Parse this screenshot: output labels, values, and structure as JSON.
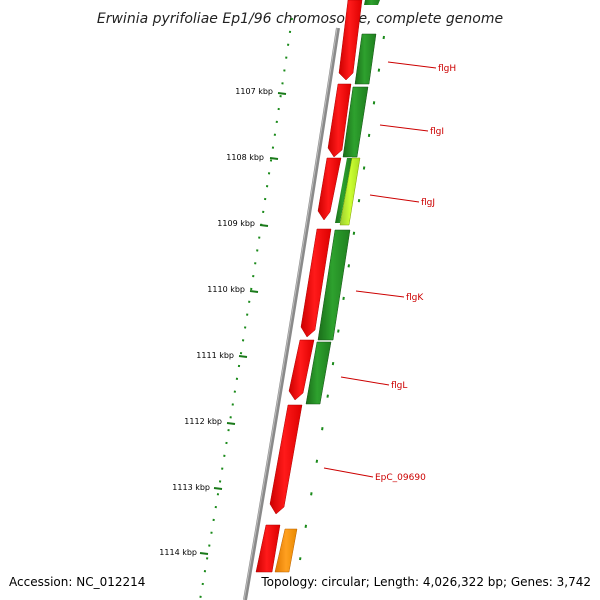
{
  "title": "Erwinia pyrifoliae Ep1/96 chromosome, complete genome",
  "footer": {
    "accession": "Accession: NC_012214",
    "topology": "Topology: circular; Length: 4,026,322 bp; Genes: 3,742"
  },
  "ticks": [
    "1107 kbp",
    "1108 kbp",
    "1109 kbp",
    "1110 kbp",
    "1111 kbp",
    "1112 kbp",
    "1113 kbp",
    "1114 kbp"
  ],
  "genes": [
    "flgH",
    "flgI",
    "flgJ",
    "flgK",
    "flgL",
    "EpC_09690"
  ],
  "colors": {
    "forward_strand": "#ff0000",
    "reverse_strand_dark": "#228b22",
    "reverse_strand_light": "#adff2f",
    "other": "#ff8c00",
    "backbone": "#888888",
    "ticks": "#006400",
    "labels": "#cc0000"
  }
}
